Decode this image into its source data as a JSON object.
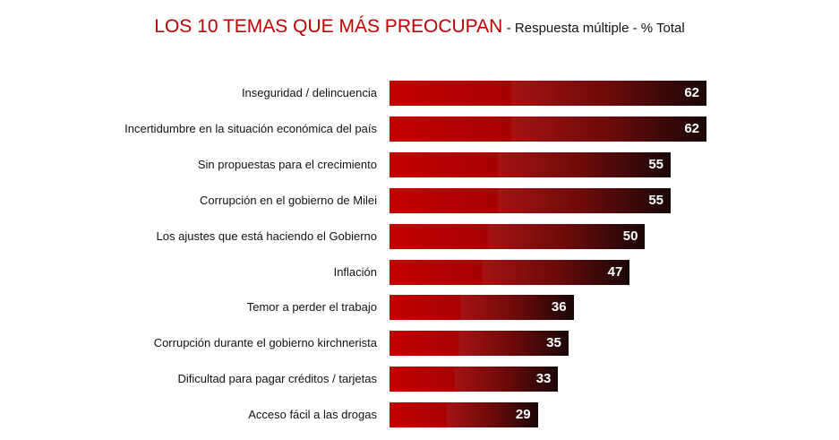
{
  "chart_data": {
    "type": "bar",
    "orientation": "horizontal",
    "title": "LOS 10 TEMAS QUE MÁS PREOCUPAN",
    "subtitle": "- Respuesta múltiple - % Total",
    "categories": [
      "Inseguridad / delincuencia",
      "Incertidumbre en la situación económica del país",
      "Sin propuestas para el crecimiento",
      "Corrupción en el gobierno de Milei",
      "Los ajustes que está haciendo el Gobierno",
      "Inflación",
      "Temor a perder el trabajo",
      "Corrupción durante el gobierno kirchnerista",
      "Dificultad para pagar créditos / tarjetas",
      "Acceso fácil a las drogas"
    ],
    "values": [
      62,
      62,
      55,
      55,
      50,
      47,
      36,
      35,
      33,
      29
    ],
    "data_labels": true,
    "grid": false,
    "colors": {
      "bar_start": "#c30000",
      "bar_end": "#1a0707",
      "title": "#c00000",
      "label": "#ffffff"
    }
  }
}
